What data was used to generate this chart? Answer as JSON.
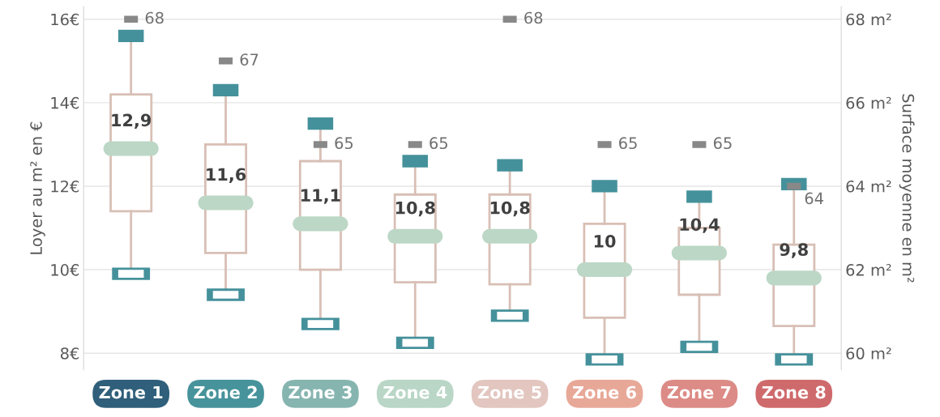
{
  "chart_data": {
    "type": "box",
    "categories": [
      "Zone 1",
      "Zone 2",
      "Zone 3",
      "Zone 4",
      "Zone 5",
      "Zone 6",
      "Zone 7",
      "Zone 8"
    ],
    "colors": [
      "#2f5f7a",
      "#47939b",
      "#86b5b0",
      "#b9d6c6",
      "#e2c6bf",
      "#e8a898",
      "#dc8b86",
      "#cf6a6c"
    ],
    "ylabel": "Loyer au m² en €",
    "y2label": "Surface moyenne en m²",
    "ylim": [
      7.6,
      16.3
    ],
    "yticks": [
      {
        "value": 8,
        "label": "8€"
      },
      {
        "value": 10,
        "label": "10€"
      },
      {
        "value": 12,
        "label": "12€"
      },
      {
        "value": 14,
        "label": "14€"
      },
      {
        "value": 16,
        "label": "16€"
      }
    ],
    "y2lim": [
      59.6,
      68.3
    ],
    "y2ticks": [
      {
        "value": 60,
        "label": "60 m²"
      },
      {
        "value": 62,
        "label": "62 m²"
      },
      {
        "value": 64,
        "label": "64 m²"
      },
      {
        "value": 66,
        "label": "66 m²"
      },
      {
        "value": 68,
        "label": "68 m²"
      }
    ],
    "grid": "y",
    "series": [
      {
        "color": "#d8bfb5",
        "boxes": [
          {
            "low": 9.9,
            "q1": 11.4,
            "median": 12.9,
            "q3": 14.2,
            "high": 15.6
          },
          {
            "low": 9.4,
            "q1": 10.4,
            "median": 11.6,
            "q3": 13.0,
            "high": 14.3
          },
          {
            "low": 8.7,
            "q1": 10.0,
            "median": 11.1,
            "q3": 12.6,
            "high": 13.5
          },
          {
            "low": 8.25,
            "q1": 9.7,
            "median": 10.8,
            "q3": 11.8,
            "high": 12.6
          },
          {
            "low": 8.9,
            "q1": 9.65,
            "median": 10.8,
            "q3": 11.8,
            "high": 12.5
          },
          {
            "low": 7.85,
            "q1": 8.85,
            "median": 10,
            "q3": 11.1,
            "high": 12.0
          },
          {
            "low": 8.15,
            "q1": 9.4,
            "median": 10.4,
            "q3": 11.0,
            "high": 11.75
          },
          {
            "low": 7.85,
            "q1": 8.65,
            "median": 9.8,
            "q3": 10.6,
            "high": 12.05
          }
        ],
        "value_labels": [
          "12,9",
          "11,6",
          "11,1",
          "10,8",
          "10,8",
          "10",
          "10,4",
          "9,8"
        ]
      },
      {
        "type": "scatter",
        "axis": "y2",
        "color": "#888888",
        "data_labels": true,
        "x": [
          "Zone 1",
          "Zone 2",
          "Zone 3",
          "Zone 4",
          "Zone 5",
          "Zone 6",
          "Zone 7",
          "Zone 8"
        ],
        "values": [
          68,
          67,
          65,
          65,
          68,
          65,
          65,
          64
        ]
      }
    ]
  }
}
